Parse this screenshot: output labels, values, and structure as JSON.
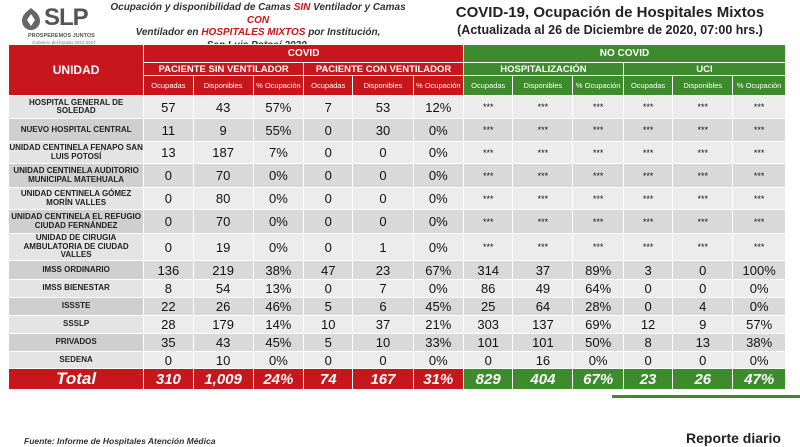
{
  "logo": {
    "brand": "SLP",
    "tagline": "PROSPEREMOS JUNTOS",
    "government": "Gobierno del Estado 2021-2027"
  },
  "subtitle": {
    "line1_pre": "Ocupación y disponibilidad de Camas ",
    "line1_red": "SIN",
    "line1_mid": " Ventilador y Camas ",
    "line1_red2": "CON",
    "line2_pre": "Ventilador en ",
    "line2_red": "HOSPITALES MIXTOS",
    "line2_post": " por Institución,",
    "line3": "San Luis Potosí 2020."
  },
  "title": {
    "main": "COVID-19, Ocupación de Hospitales Mixtos",
    "date": "(Actualizada al 26 de Diciembre de 2020, 07:00 hrs.)"
  },
  "headers": {
    "unit": "UNIDAD",
    "covid": "COVID",
    "no_covid": "NO COVID",
    "sin_vent": "PACIENTE SIN VENTILADOR",
    "con_vent": "PACIENTE CON VENTILADOR",
    "hosp": "HOSPITALIZACIÓN",
    "uci": "UCI",
    "ocupadas": "Ocupadas",
    "disponibles": "Disponibles",
    "pct": "% Ocupación"
  },
  "rows": [
    {
      "name": "HOSPITAL GENERAL DE SOLEDAD",
      "v": [
        "57",
        "43",
        "57%",
        "7",
        "53",
        "12%",
        "***",
        "***",
        "***",
        "***",
        "***",
        "***"
      ]
    },
    {
      "name": "NUEVO HOSPITAL CENTRAL",
      "v": [
        "11",
        "9",
        "55%",
        "0",
        "30",
        "0%",
        "***",
        "***",
        "***",
        "***",
        "***",
        "***"
      ]
    },
    {
      "name": "UNIDAD CENTINELA FENAPO SAN LUIS POTOSÍ",
      "v": [
        "13",
        "187",
        "7%",
        "0",
        "0",
        "0%",
        "***",
        "***",
        "***",
        "***",
        "***",
        "***"
      ]
    },
    {
      "name": "UNIDAD CENTINELA AUDITORIO MUNICIPAL MATEHUALA",
      "v": [
        "0",
        "70",
        "0%",
        "0",
        "0",
        "0%",
        "***",
        "***",
        "***",
        "***",
        "***",
        "***"
      ]
    },
    {
      "name": "UNIDAD CENTINELA GÓMEZ MORÍN VALLES",
      "v": [
        "0",
        "80",
        "0%",
        "0",
        "0",
        "0%",
        "***",
        "***",
        "***",
        "***",
        "***",
        "***"
      ]
    },
    {
      "name": "UNIDAD CENTINELA EL REFUGIO CIUDAD FERNÁNDEZ",
      "v": [
        "0",
        "70",
        "0%",
        "0",
        "0",
        "0%",
        "***",
        "***",
        "***",
        "***",
        "***",
        "***"
      ]
    },
    {
      "name": "UNIDAD DE CIRUGÍA AMBULATORIA DE CIUDAD VALLES",
      "v": [
        "0",
        "19",
        "0%",
        "0",
        "1",
        "0%",
        "***",
        "***",
        "***",
        "***",
        "***",
        "***"
      ]
    },
    {
      "name": "IMSS ORDINARIO",
      "v": [
        "136",
        "219",
        "38%",
        "47",
        "23",
        "67%",
        "314",
        "37",
        "89%",
        "3",
        "0",
        "100%"
      ]
    },
    {
      "name": "IMSS BIENESTAR",
      "v": [
        "8",
        "54",
        "13%",
        "0",
        "7",
        "0%",
        "86",
        "49",
        "64%",
        "0",
        "0",
        "0%"
      ]
    },
    {
      "name": "ISSSTE",
      "v": [
        "22",
        "26",
        "46%",
        "5",
        "6",
        "45%",
        "25",
        "64",
        "28%",
        "0",
        "4",
        "0%"
      ]
    },
    {
      "name": "SSSLP",
      "v": [
        "28",
        "179",
        "14%",
        "10",
        "37",
        "21%",
        "303",
        "137",
        "69%",
        "12",
        "9",
        "57%"
      ]
    },
    {
      "name": "PRIVADOS",
      "v": [
        "35",
        "43",
        "45%",
        "5",
        "10",
        "33%",
        "101",
        "101",
        "50%",
        "8",
        "13",
        "38%"
      ]
    },
    {
      "name": "SEDENA",
      "v": [
        "0",
        "10",
        "0%",
        "0",
        "0",
        "0%",
        "0",
        "16",
        "0%",
        "0",
        "0",
        "0%"
      ]
    }
  ],
  "total": {
    "label": "Total",
    "v": [
      "310",
      "1,009",
      "24%",
      "74",
      "167",
      "31%",
      "829",
      "404",
      "67%",
      "23",
      "26",
      "47%"
    ]
  },
  "footer": {
    "source": "Fuente: Informe de Hospitales Atención Médica",
    "report": "Reporte diario"
  },
  "colors": {
    "red": "#c8161d",
    "green": "#3e8b2e"
  }
}
